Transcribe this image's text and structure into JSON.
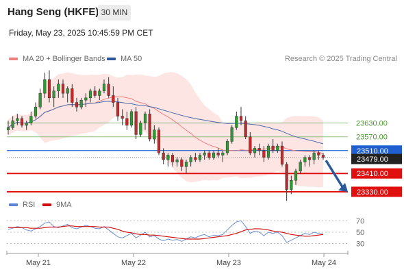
{
  "header": {
    "title": "Hang Seng (HKFE)",
    "timeframe": "30 MIN",
    "datetime": "Friday, May 23, 2025 10:45:59 PM CET",
    "credit": "Research © 2025 Trading Central"
  },
  "legend": {
    "ma20_bb": "MA 20 + Bollinger Bands",
    "ma50": "MA 50",
    "rsi": "RSI",
    "rsi_ma": "9MA"
  },
  "colors": {
    "candle_up": "#2e9a32",
    "candle_down": "#c62828",
    "bollinger_fill": "#fde0de",
    "ma20": "#f08080",
    "ma50": "#4a6aa8",
    "resistance": "#8cc07a",
    "pivot": "#1f5fd0",
    "support": "#e01010",
    "current_price": "#222222",
    "rsi": "#6a8fd0",
    "rsi_ma": "#d01010",
    "arrow": "#2a5a9a"
  },
  "chart_data": [
    {
      "type": "candlestick",
      "title": "Hang Seng (HKFE)",
      "interval": "30 MIN",
      "x_ticks": [
        "May 21",
        "May 22",
        "May 23",
        "May 24"
      ],
      "y_range": [
        23300,
        23880
      ],
      "levels": [
        {
          "label": "23630.00",
          "value": 23630,
          "kind": "resistance"
        },
        {
          "label": "23570.00",
          "value": 23570,
          "kind": "resistance"
        },
        {
          "label": "23510.00",
          "value": 23510,
          "kind": "pivot"
        },
        {
          "label": "23479.00",
          "value": 23479,
          "kind": "current-price"
        },
        {
          "label": "23410.00",
          "value": 23410,
          "kind": "support"
        },
        {
          "label": "23330.00",
          "value": 23330,
          "kind": "support"
        }
      ],
      "forecast_arrow": {
        "from": 23479,
        "to": 23330,
        "direction": "down"
      },
      "ohlc": [
        [
          23600,
          23640,
          23580,
          23610
        ],
        [
          23610,
          23660,
          23600,
          23640
        ],
        [
          23640,
          23670,
          23620,
          23650
        ],
        [
          23650,
          23660,
          23610,
          23620
        ],
        [
          23620,
          23640,
          23600,
          23630
        ],
        [
          23630,
          23680,
          23620,
          23660
        ],
        [
          23660,
          23720,
          23650,
          23700
        ],
        [
          23700,
          23780,
          23690,
          23760
        ],
        [
          23760,
          23850,
          23740,
          23820
        ],
        [
          23820,
          23860,
          23720,
          23740
        ],
        [
          23740,
          23790,
          23700,
          23770
        ],
        [
          23770,
          23820,
          23740,
          23800
        ],
        [
          23800,
          23820,
          23740,
          23760
        ],
        [
          23760,
          23790,
          23720,
          23780
        ],
        [
          23780,
          23800,
          23700,
          23720
        ],
        [
          23720,
          23740,
          23680,
          23700
        ],
        [
          23700,
          23740,
          23690,
          23730
        ],
        [
          23730,
          23760,
          23700,
          23740
        ],
        [
          23740,
          23780,
          23720,
          23770
        ],
        [
          23770,
          23790,
          23740,
          23750
        ],
        [
          23750,
          23780,
          23730,
          23770
        ],
        [
          23770,
          23820,
          23760,
          23800
        ],
        [
          23800,
          23830,
          23740,
          23750
        ],
        [
          23750,
          23790,
          23700,
          23720
        ],
        [
          23720,
          23740,
          23640,
          23660
        ],
        [
          23660,
          23690,
          23620,
          23650
        ],
        [
          23650,
          23680,
          23600,
          23620
        ],
        [
          23620,
          23690,
          23610,
          23680
        ],
        [
          23680,
          23700,
          23560,
          23580
        ],
        [
          23580,
          23640,
          23570,
          23630
        ],
        [
          23630,
          23680,
          23600,
          23670
        ],
        [
          23670,
          23690,
          23550,
          23560
        ],
        [
          23560,
          23620,
          23540,
          23600
        ],
        [
          23600,
          23610,
          23490,
          23500
        ],
        [
          23500,
          23520,
          23450,
          23470
        ],
        [
          23470,
          23500,
          23440,
          23490
        ],
        [
          23490,
          23500,
          23440,
          23460
        ],
        [
          23460,
          23480,
          23440,
          23470
        ],
        [
          23470,
          23480,
          23420,
          23440
        ],
        [
          23440,
          23470,
          23410,
          23460
        ],
        [
          23460,
          23490,
          23440,
          23480
        ],
        [
          23480,
          23500,
          23460,
          23470
        ],
        [
          23470,
          23500,
          23460,
          23490
        ],
        [
          23490,
          23510,
          23470,
          23500
        ],
        [
          23500,
          23510,
          23470,
          23480
        ],
        [
          23480,
          23510,
          23470,
          23500
        ],
        [
          23500,
          23520,
          23480,
          23490
        ],
        [
          23490,
          23510,
          23460,
          23500
        ],
        [
          23500,
          23560,
          23490,
          23550
        ],
        [
          23550,
          23620,
          23540,
          23610
        ],
        [
          23610,
          23680,
          23600,
          23660
        ],
        [
          23660,
          23700,
          23620,
          23640
        ],
        [
          23640,
          23660,
          23560,
          23570
        ],
        [
          23570,
          23590,
          23490,
          23500
        ],
        [
          23500,
          23530,
          23480,
          23520
        ],
        [
          23520,
          23540,
          23490,
          23510
        ],
        [
          23510,
          23530,
          23460,
          23480
        ],
        [
          23480,
          23540,
          23470,
          23530
        ],
        [
          23530,
          23560,
          23500,
          23510
        ],
        [
          23510,
          23540,
          23500,
          23530
        ],
        [
          23530,
          23550,
          23440,
          23450
        ],
        [
          23450,
          23460,
          23290,
          23340
        ],
        [
          23340,
          23400,
          23320,
          23380
        ],
        [
          23380,
          23430,
          23360,
          23420
        ],
        [
          23420,
          23470,
          23410,
          23460
        ],
        [
          23460,
          23490,
          23440,
          23480
        ],
        [
          23480,
          23490,
          23440,
          23470
        ],
        [
          23470,
          23510,
          23450,
          23500
        ],
        [
          23500,
          23510,
          23470,
          23490
        ],
        [
          23490,
          23500,
          23470,
          23480
        ]
      ]
    },
    {
      "type": "line",
      "title": "RSI",
      "series": [
        {
          "name": "RSI",
          "values": [
            55,
            57,
            60,
            58,
            54,
            52,
            56,
            60,
            66,
            68,
            60,
            58,
            61,
            64,
            58,
            56,
            59,
            62,
            60,
            57,
            56,
            60,
            54,
            48,
            42,
            40,
            44,
            48,
            40,
            45,
            50,
            42,
            44,
            38,
            35,
            38,
            36,
            37,
            34,
            38,
            42,
            40,
            44,
            46,
            42,
            45,
            44,
            46,
            54,
            62,
            68,
            70,
            60,
            48,
            52,
            50,
            44,
            50,
            48,
            50,
            44,
            32,
            36,
            40,
            44,
            48,
            46,
            50,
            48,
            47
          ]
        },
        {
          "name": "9MA",
          "values": [
            58,
            58,
            58,
            58,
            58,
            57,
            57,
            57,
            58,
            59,
            59,
            59,
            60,
            61,
            61,
            60,
            60,
            60,
            60,
            60,
            59,
            59,
            59,
            57,
            55,
            52,
            50,
            49,
            47,
            46,
            46,
            45,
            45,
            44,
            43,
            42,
            41,
            40,
            39,
            38,
            38,
            38,
            38,
            39,
            40,
            41,
            42,
            43,
            44,
            46,
            48,
            51,
            54,
            55,
            56,
            56,
            55,
            54,
            52,
            51,
            50,
            48,
            46,
            45,
            44,
            43,
            43,
            44,
            45,
            46
          ]
        }
      ],
      "y_ticks": [
        70,
        50,
        30
      ],
      "y_range": [
        20,
        80
      ]
    }
  ]
}
